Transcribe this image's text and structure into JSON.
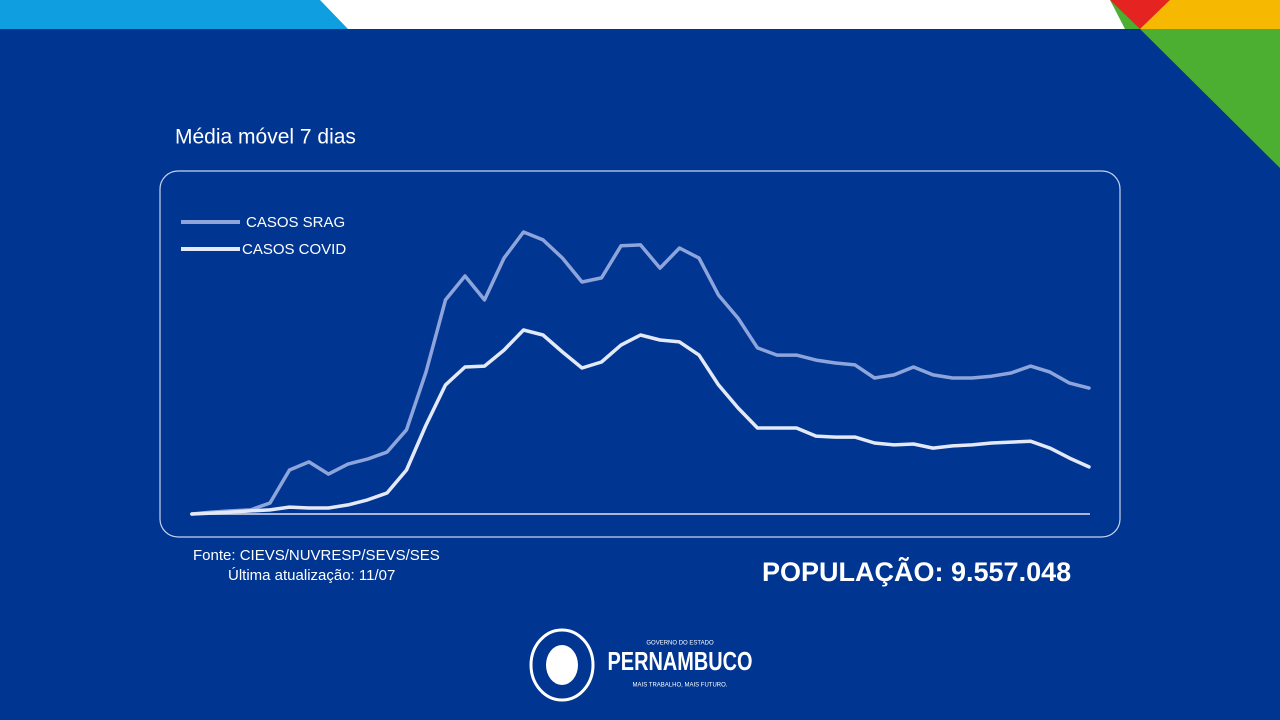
{
  "chart_data": {
    "type": "line",
    "title": "Média móvel 7 dias",
    "series": [
      {
        "name": "CASOS SRAG",
        "color": "#8ea5dc",
        "values": [
          0,
          0.6,
          1,
          1.3,
          3.5,
          14,
          16.6,
          12.7,
          15.9,
          17.5,
          19.7,
          26.8,
          45.2,
          68.2,
          75.8,
          68.2,
          81.5,
          89.8,
          87.3,
          81.5,
          73.9,
          75.2,
          85.4,
          85.7,
          78.3,
          84.7,
          81.5,
          69.7,
          62.4,
          52.9,
          50.6,
          50.6,
          49,
          48.1,
          47.5,
          43.3,
          44.3,
          46.8,
          44.3,
          43.3,
          43.3,
          43.9,
          44.9,
          47.1,
          45.2,
          41.7,
          40.1
        ]
      },
      {
        "name": "CASOS COVID",
        "color": "#e3e9f7",
        "values": [
          0,
          0.3,
          0.6,
          1,
          1.3,
          2.2,
          1.9,
          1.9,
          2.9,
          4.5,
          6.7,
          14,
          28.3,
          41.1,
          46.8,
          47.1,
          52.2,
          58.6,
          57,
          51.6,
          46.5,
          48.4,
          53.8,
          57,
          55.4,
          54.8,
          50.6,
          41.1,
          33.8,
          27.4,
          27.4,
          27.4,
          24.8,
          24.5,
          24.5,
          22.6,
          22,
          22.3,
          21,
          21.7,
          22,
          22.6,
          22.9,
          23.2,
          21,
          17.8,
          15
        ]
      }
    ],
    "ylim": [
      0,
      100
    ],
    "source": "Fonte: CIEVS/NUVRESP/SEVS/SES",
    "updated": "Última atualização: 11/07",
    "population": "POPULAÇÃO: 9.557.048"
  },
  "logo": {
    "top": "GOVERNO DO ESTADO",
    "name": "PERNAMBUCO",
    "slogan": "MAIS TRABALHO, MAIS FUTURO."
  }
}
